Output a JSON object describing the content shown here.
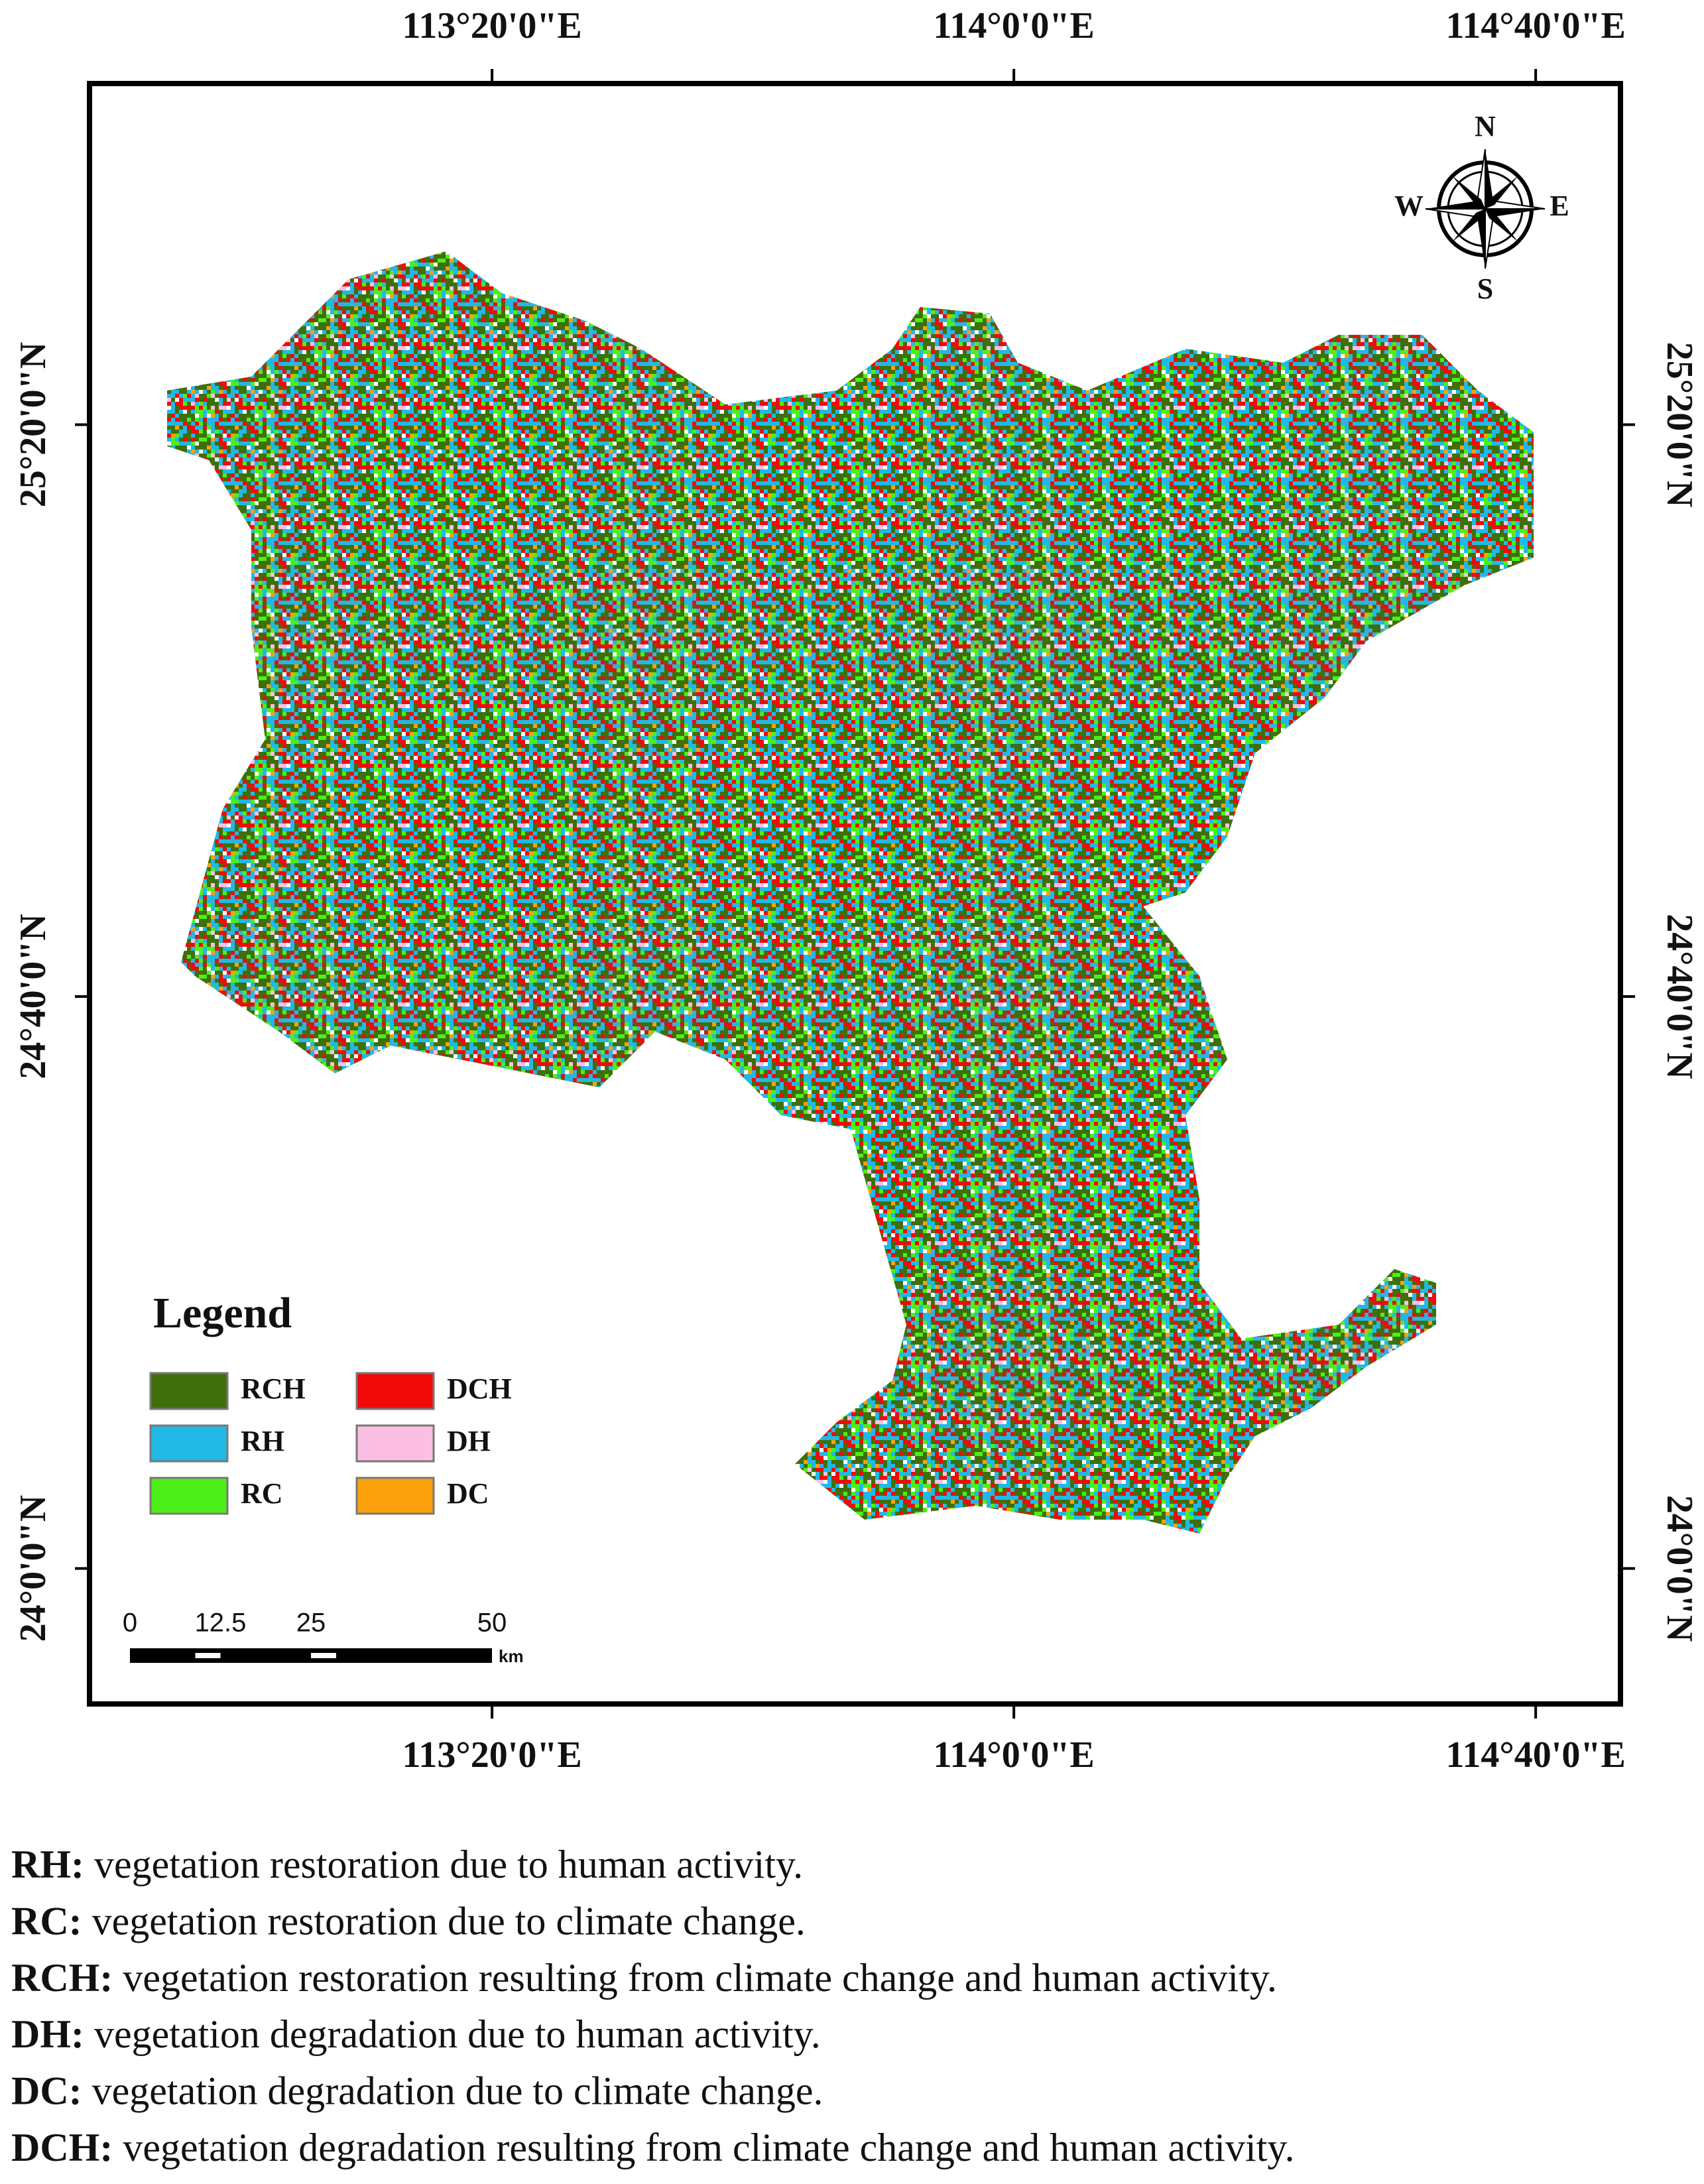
{
  "map": {
    "longitude_ticks": [
      {
        "value": 113.3333,
        "label": "113°20'0\"E"
      },
      {
        "value": 114.0,
        "label": "114°0'0\"E"
      },
      {
        "value": 114.6667,
        "label": "114°40'0\"E"
      }
    ],
    "latitude_ticks": [
      {
        "value": 25.3333,
        "label": "25°20'0\"N"
      },
      {
        "value": 24.6667,
        "label": "24°40'0\"N"
      },
      {
        "value": 24.0,
        "label": "24°0'0\"N"
      }
    ],
    "xlim": [
      112.819,
      114.775
    ],
    "ylim": [
      23.842,
      25.731
    ],
    "compass": {
      "north": "N",
      "south": "S",
      "east": "E",
      "west": "W"
    },
    "legend": {
      "title": "Legend",
      "items": [
        {
          "label": "RCH",
          "color": "#3f6f0a"
        },
        {
          "label": "RH",
          "color": "#22b8e6"
        },
        {
          "label": "RC",
          "color": "#4cf018"
        },
        {
          "label": "DCH",
          "color": "#f00a0a"
        },
        {
          "label": "DH",
          "color": "#fcbfe4"
        },
        {
          "label": "DC",
          "color": "#fba10c"
        }
      ]
    },
    "scale_bar": {
      "ticks": [
        0,
        12.5,
        25,
        50
      ],
      "unit": "km"
    }
  },
  "notes": [
    {
      "term": "RH:",
      "text": "vegetation restoration due to human activity."
    },
    {
      "term": "RC:",
      "text": "vegetation restoration due to climate change."
    },
    {
      "term": "RCH:",
      "text": "vegetation restoration resulting from climate change and human activity."
    },
    {
      "term": "DH:",
      "text": "vegetation degradation due to human activity."
    },
    {
      "term": "DC:",
      "text": "vegetation degradation due to climate change."
    },
    {
      "term": "DCH:",
      "text": "vegetation degradation resulting from climate change and human activity."
    }
  ]
}
